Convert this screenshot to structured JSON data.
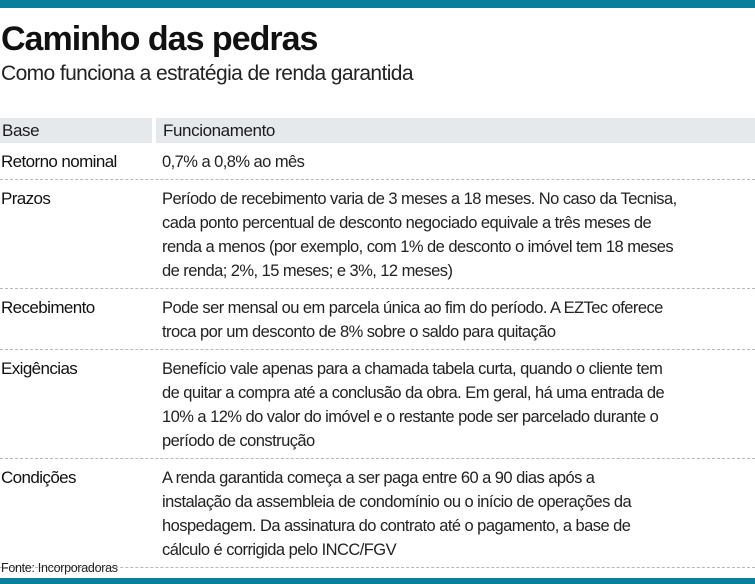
{
  "header": {
    "title": "Caminho das pedras",
    "subtitle": "Como funciona a estratégia de renda garantida"
  },
  "table": {
    "columns": [
      "Base",
      "Funcionamento"
    ],
    "rows": [
      {
        "base": "Retorno nominal",
        "funcionamento": "0,7% a 0,8% ao mês"
      },
      {
        "base": "Prazos",
        "funcionamento": "Período de recebimento varia de 3 meses a 18 meses. No caso da Tecnisa,\ncada ponto percentual de desconto negociado equivale a três meses de\nrenda a menos (por exemplo, com 1% de desconto o imóvel tem 18 meses\nde renda; 2%, 15 meses; e 3%, 12 meses)"
      },
      {
        "base": "Recebimento",
        "funcionamento": "Pode ser mensal ou em  parcela única ao fim do período. A EZTec oferece\ntroca por um desconto de 8% sobre o saldo para quitação"
      },
      {
        "base": "Exigências",
        "funcionamento": "Benefício vale apenas para a chamada tabela curta, quando o cliente tem\nde quitar a compra até a conclusão da obra. Em geral, há uma entrada de\n10% a 12% do valor do imóvel e o restante pode ser parcelado durante o\nperíodo de construção"
      },
      {
        "base": "Condições",
        "funcionamento": "A renda garantida começa a ser paga entre 60 a 90 dias após a\ninstalação da assembleia de condomínio ou o início de operações da\nhospedagem. Da assinatura do contrato até o pagamento, a base de\ncálculo é corrigida pelo INCC/FGV"
      }
    ]
  },
  "footer": {
    "source": "Fonte: Incorporadoras"
  },
  "colors": {
    "accent": "#0a7f9c",
    "header_bg": "#e6e9ec"
  }
}
